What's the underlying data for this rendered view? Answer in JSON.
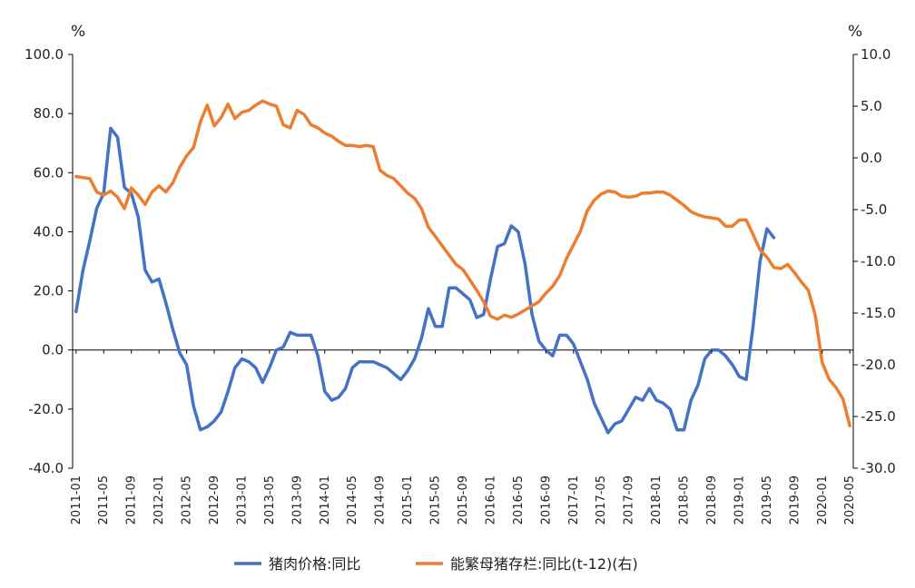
{
  "chart_data": {
    "type": "line",
    "left_axis_unit": "%",
    "right_axis_unit": "%",
    "ylim_left": [
      -40,
      100
    ],
    "ylim_right": [
      -30,
      10
    ],
    "yticks_left": [
      "100.0",
      "80.0",
      "60.0",
      "40.0",
      "20.0",
      "0.0",
      "-20.0",
      "-40.0"
    ],
    "yticks_right": [
      "10.0",
      "5.0",
      "0.0",
      "-5.0",
      "-10.0",
      "-15.0",
      "-20.0",
      "-25.0",
      "-30.0"
    ],
    "x_tick_labels": [
      "2011-01",
      "2011-05",
      "2011-09",
      "2012-01",
      "2012-05",
      "2012-09",
      "2013-01",
      "2013-05",
      "2013-09",
      "2014-01",
      "2014-05",
      "2014-09",
      "2015-01",
      "2015-05",
      "2015-09",
      "2016-01",
      "2016-05",
      "2016-09",
      "2017-01",
      "2017-05",
      "2017-09",
      "2018-01",
      "2018-05",
      "2018-09",
      "2019-01",
      "2019-05",
      "2019-09",
      "2020-01",
      "2020-05"
    ],
    "x_start": "2011-01",
    "grid": false,
    "legend_position": "bottom",
    "series": [
      {
        "name": "猪肉价格:同比",
        "axis": "left",
        "color": "#4472C4",
        "values": [
          13,
          27,
          37,
          48,
          53,
          75,
          72,
          55,
          53,
          45,
          27,
          23,
          24,
          16,
          7,
          -1,
          -5,
          -19,
          -27,
          -26,
          -24,
          -21,
          -14,
          -6,
          -3,
          -4,
          -6,
          -11,
          -6,
          0,
          1,
          6,
          5,
          5,
          5,
          -2,
          -14,
          -17,
          -16,
          -13,
          -6,
          -4,
          -4,
          -4,
          -5,
          -6,
          -8,
          -10,
          -7,
          -3,
          4,
          14,
          8,
          8,
          21,
          21,
          19,
          17,
          11,
          12,
          24,
          35,
          36,
          42,
          40,
          29,
          12,
          3,
          0,
          -2,
          5,
          5,
          2,
          -4,
          -10,
          -18,
          -23,
          -28,
          -25,
          -24,
          -20,
          -16,
          -17,
          -13,
          -17,
          -18,
          -20,
          -27,
          -27,
          -17,
          -12,
          -3,
          0,
          0,
          -2,
          -5,
          -9,
          -10,
          8,
          30,
          41,
          38
        ]
      },
      {
        "name": "能繁母猪存栏:同比(t-12)(右)",
        "axis": "right",
        "color": "#ED7D31",
        "values": [
          -1.8,
          -1.9,
          -2.0,
          -3.3,
          -3.6,
          -3.2,
          -3.8,
          -4.9,
          -2.9,
          -3.6,
          -4.5,
          -3.3,
          -2.7,
          -3.3,
          -2.4,
          -0.9,
          0.2,
          1.0,
          3.5,
          5.1,
          3.1,
          3.9,
          5.2,
          3.8,
          4.4,
          4.6,
          5.1,
          5.5,
          5.2,
          5.0,
          3.2,
          2.9,
          4.6,
          4.2,
          3.2,
          2.9,
          2.4,
          2.1,
          1.6,
          1.2,
          1.2,
          1.1,
          1.2,
          1.1,
          -1.2,
          -1.7,
          -2.0,
          -2.7,
          -3.4,
          -3.9,
          -4.9,
          -6.7,
          -7.6,
          -8.5,
          -9.4,
          -10.3,
          -10.8,
          -11.8,
          -12.8,
          -13.9,
          -15.3,
          -15.6,
          -15.2,
          -15.4,
          -15.1,
          -14.7,
          -14.3,
          -13.9,
          -13.1,
          -12.4,
          -11.4,
          -9.7,
          -8.4,
          -7.1,
          -5.1,
          -4.1,
          -3.5,
          -3.2,
          -3.3,
          -3.7,
          -3.8,
          -3.7,
          -3.4,
          -3.4,
          -3.3,
          -3.3,
          -3.6,
          -4.1,
          -4.6,
          -5.2,
          -5.5,
          -5.7,
          -5.8,
          -5.9,
          -6.6,
          -6.6,
          -6.0,
          -6.0,
          -7.4,
          -8.9,
          -9.6,
          -10.6,
          -10.7,
          -10.3,
          -11.1,
          -12.0,
          -12.8,
          -15.2,
          -19.8,
          -21.4,
          -22.2,
          -23.3,
          -25.9
        ]
      }
    ]
  }
}
